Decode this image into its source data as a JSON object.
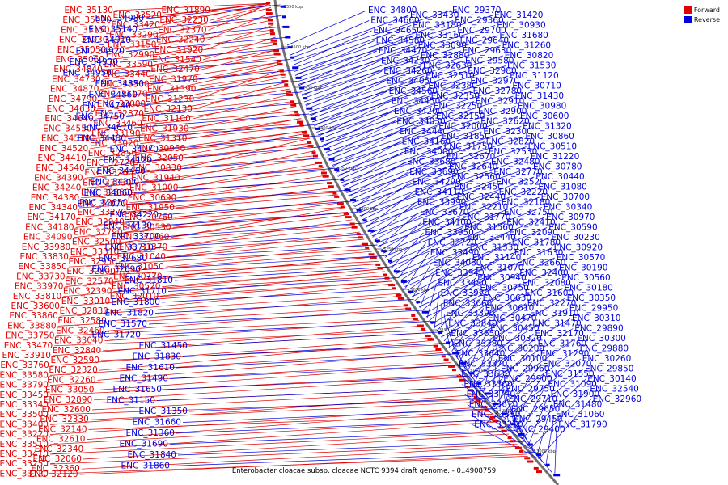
{
  "legend": {
    "forward_label": "Forward",
    "reverse_label": "Reverse",
    "forward_color": "#e00000",
    "reverse_color": "#0000e0"
  },
  "caption": "Enterobacter cloacae subsp. cloacae NCTC 9394 draft genome. - 0..4908759",
  "kbp_ticks": [
    "3550 kbp",
    "3500 kbp",
    "3450 kbp",
    "3400 kbp",
    "3350 kbp",
    "3300 kbp",
    "3250 kbp",
    "3200 kbp",
    "3150 kbp",
    "3100 kbp",
    "3050 kbp",
    "3000 kbp"
  ],
  "forward_genes": [
    "ENC_35130",
    "ENC_35020",
    "ENC_35150",
    "ENC_35030",
    "ENC_35050",
    "ENC_35060",
    "ENC_34840",
    "ENC_34730",
    "ENC_34870",
    "ENC_34790",
    "ENC_34630",
    "ENC_34640",
    "ENC_34550",
    "ENC_34510",
    "ENC_34520",
    "ENC_34410",
    "ENC_34540",
    "ENC_34390",
    "ENC_34240",
    "ENC_34380",
    "ENC_34340",
    "ENC_34170",
    "ENC_34180",
    "ENC_34090",
    "ENC_33980",
    "ENC_33830",
    "ENC_33850",
    "ENC_33730",
    "ENC_33970",
    "ENC_33810",
    "ENC_33600",
    "ENC_33860",
    "ENC_33880",
    "ENC_33750",
    "ENC_33470",
    "ENC_33910",
    "ENC_33760",
    "ENC_33580",
    "ENC_33790",
    "ENC_33450",
    "ENC_33340",
    "ENC_33500",
    "ENC_33400",
    "ENC_33220",
    "ENC_33510",
    "ENC_33410",
    "ENC_33250",
    "ENC_33120",
    "ENC_33520",
    "ENC_33420",
    "ENC_33290",
    "ENC_33150",
    "ENC_32990",
    "ENC_33590",
    "ENC_33440",
    "ENC_33300",
    "ENC_33170",
    "ENC_33000",
    "ENC_32870",
    "ENC_33460",
    "ENC_33190",
    "ENC_33020",
    "ENC_32850",
    "ENC_32720",
    "ENC_33260",
    "ENC_33030",
    "ENC_32860",
    "ENC_32650",
    "ENC_33270",
    "ENC_32940",
    "ENC_32790",
    "ENC_32500",
    "ENC_33310",
    "ENC_32950",
    "ENC_32800",
    "ENC_32570",
    "ENC_32390",
    "ENC_33010",
    "ENC_32830",
    "ENC_32580",
    "ENC_32460",
    "ENC_33040",
    "ENC_32840",
    "ENC_32590",
    "ENC_32320",
    "ENC_32260",
    "ENC_33050",
    "ENC_32890",
    "ENC_32600",
    "ENC_32330",
    "ENC_32140",
    "ENC_32610",
    "ENC_32340",
    "ENC_32060",
    "ENC_32360",
    "ENC_32120",
    "ENC_31890",
    "ENC_32230",
    "ENC_32370",
    "ENC_32240",
    "ENC_31920",
    "ENC_31540",
    "ENC_32470",
    "ENC_31970",
    "ENC_31390",
    "ENC_31230",
    "ENC_32130",
    "ENC_31100",
    "ENC_31930",
    "ENC_31310",
    "ENC_30950",
    "ENC_32050",
    "ENC_30830",
    "ENC_31940",
    "ENC_31000",
    "ENC_30690",
    "ENC_31950",
    "ENC_30760",
    "ENC_30530",
    "ENC_31960",
    "ENC_31370",
    "ENC_31040",
    "ENC_31050",
    "ENC_30770",
    "ENC_30520",
    "ENC_32010"
  ],
  "reverse_genes": [
    "ENC_34980",
    "ENC_35140",
    "ENC_34910",
    "ENC_34920",
    "ENC_34930",
    "ENC_34950",
    "ENC_34850",
    "ENC_34860",
    "ENC_34740",
    "ENC_34750",
    "ENC_34670",
    "ENC_34480",
    "ENC_34270",
    "ENC_34120",
    "ENC_34460",
    "ENC_34300",
    "ENC_34060",
    "ENC_34070",
    "ENC_34220",
    "ENC_34130",
    "ENC_33700",
    "ENC_33710",
    "ENC_32680",
    "ENC_32690",
    "ENC_31810",
    "ENC_31710",
    "ENC_31800",
    "ENC_31820",
    "ENC_31570",
    "ENC_31720",
    "ENC_31450",
    "ENC_31830",
    "ENC_31610",
    "ENC_31490",
    "ENC_31650",
    "ENC_31150",
    "ENC_31350",
    "ENC_31660",
    "ENC_31360",
    "ENC_31690",
    "ENC_31840",
    "ENC_31860",
    "ENC_34800",
    "ENC_34660",
    "ENC_34650",
    "ENC_34580",
    "ENC_34470",
    "ENC_34230",
    "ENC_34260",
    "ENC_34050",
    "ENC_34560",
    "ENC_34450",
    "ENC_34200",
    "ENC_34030",
    "ENC_34440",
    "ENC_34160",
    "ENC_34000",
    "ENC_33680",
    "ENC_33690",
    "ENC_34290",
    "ENC_34110",
    "ENC_33990",
    "ENC_33670",
    "ENC_34100",
    "ENC_33950",
    "ENC_33720",
    "ENC_33490",
    "ENC_34080",
    "ENC_33940",
    "ENC_33480",
    "ENC_33920",
    "ENC_33660",
    "ENC_33390",
    "ENC_33840",
    "ENC_33650",
    "ENC_33380",
    "ENC_33640",
    "ENC_33370",
    "ENC_33630",
    "ENC_33360",
    "ENC_33740",
    "ENC_33610",
    "ENC_33330",
    "ENC_33210",
    "ENC_33430",
    "ENC_33180",
    "ENC_33160",
    "ENC_33090",
    "ENC_32880",
    "ENC_32630",
    "ENC_32510",
    "ENC_32380",
    "ENC_32350",
    "ENC_32250",
    "ENC_32150",
    "ENC_32000",
    "ENC_31850",
    "ENC_31750",
    "ENC_32670",
    "ENC_32640",
    "ENC_32560",
    "ENC_32450",
    "ENC_32440",
    "ENC_32210",
    "ENC_31770",
    "ENC_31560",
    "ENC_31440",
    "ENC_31330",
    "ENC_31140",
    "ENC_31070",
    "ENC_30940",
    "ENC_30750",
    "ENC_30630",
    "ENC_30610",
    "ENC_30470",
    "ENC_30450",
    "ENC_30320",
    "ENC_30200",
    "ENC_30100",
    "ENC_29960",
    "ENC_29900",
    "ENC_29750",
    "ENC_29710",
    "ENC_29650",
    "ENC_29450",
    "ENC_29400",
    "ENC_29370",
    "ENC_29360",
    "ENC_29700",
    "ENC_29640",
    "ENC_29630",
    "ENC_29580",
    "ENC_32980",
    "ENC_32970",
    "ENC_32780",
    "ENC_32910",
    "ENC_32900",
    "ENC_32620",
    "ENC_32300",
    "ENC_32820",
    "ENC_32530",
    "ENC_32480",
    "ENC_32770",
    "ENC_32520",
    "ENC_32220",
    "ENC_32180",
    "ENC_32750",
    "ENC_32410",
    "ENC_32090",
    "ENC_31780",
    "ENC_31630",
    "ENC_32660",
    "ENC_32400",
    "ENC_32080",
    "ENC_31600",
    "ENC_32270",
    "ENC_31910",
    "ENC_31470",
    "ENC_32170",
    "ENC_31760",
    "ENC_31290",
    "ENC_32070",
    "ENC_31550",
    "ENC_31090",
    "ENC_31900",
    "ENC_31480",
    "ENC_31060",
    "ENC_31790",
    "ENC_31420",
    "ENC_30930",
    "ENC_31680",
    "ENC_31260",
    "ENC_30820",
    "ENC_31530",
    "ENC_31120",
    "ENC_30710",
    "ENC_31430",
    "ENC_30980",
    "ENC_30600",
    "ENC_31320",
    "ENC_30860",
    "ENC_30510",
    "ENC_31220",
    "ENC_30780",
    "ENC_30440",
    "ENC_31080",
    "ENC_30700",
    "ENC_30340",
    "ENC_30970",
    "ENC_30590",
    "ENC_30230",
    "ENC_30920",
    "ENC_30570",
    "ENC_30190",
    "ENC_30560",
    "ENC_30180",
    "ENC_30350",
    "ENC_29950",
    "ENC_30310",
    "ENC_29890",
    "ENC_30300",
    "ENC_29880",
    "ENC_30260",
    "ENC_29850",
    "ENC_30140",
    "ENC_32540",
    "ENC_32960"
  ]
}
